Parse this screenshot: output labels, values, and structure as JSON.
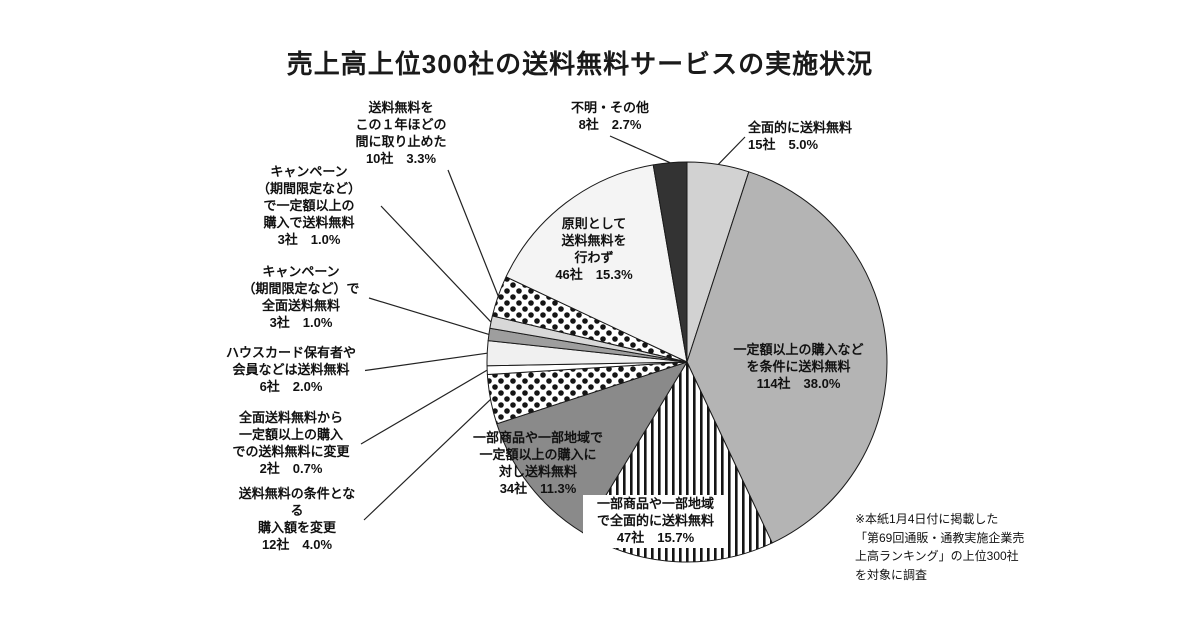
{
  "chart_data": {
    "type": "pie",
    "title": "売上高上位300社の送料無料サービスの実施状況",
    "footnote": "※本紙1月4日付に掲載した\n「第69回通販・通教実施企業売\n上高ランキング」の上位300社\nを対象に調査",
    "total_companies": 300,
    "value_unit": "社",
    "start_angle": "12-oclock",
    "direction": "clockwise",
    "legend_position": "none",
    "palette": "monochrome-patterns",
    "segments": [
      {
        "name": "全面的に送料無料",
        "companies": 15,
        "pct": 5.0,
        "fill": "#d2d2d2",
        "display": "全面的に送料無料\n15社　5.0%"
      },
      {
        "name": "一定額以上の購入などを条件に送料無料",
        "companies": 114,
        "pct": 38.0,
        "fill": "#b4b4b4",
        "display": "一定額以上の購入など\nを条件に送料無料\n114社　38.0%"
      },
      {
        "name": "一部商品や一部地域で全面的に送料無料",
        "companies": 47,
        "pct": 15.7,
        "fill": "stripes",
        "display": "一部商品や一部地域\nで全面的に送料無料\n47社　15.7%"
      },
      {
        "name": "一部商品や一部地域で一定額以上の購入に対し送料無料",
        "companies": 34,
        "pct": 11.3,
        "fill": "#8a8a8a",
        "display": "一部商品や一部地域で\n一定額以上の購入に\n対し送料無料\n34社　11.3%"
      },
      {
        "name": "送料無料の条件となる購入額を変更",
        "companies": 12,
        "pct": 4.0,
        "fill": "dots",
        "display": "送料無料の条件となる\n購入額を変更\n12社　4.0%"
      },
      {
        "name": "全面送料無料から一定額以上の購入での送料無料に変更",
        "companies": 2,
        "pct": 0.7,
        "fill": "#ffffff",
        "display": "全面送料無料から\n一定額以上の購入\nでの送料無料に変更\n2社　0.7%"
      },
      {
        "name": "ハウスカード保有者や会員などは送料無料",
        "companies": 6,
        "pct": 2.0,
        "fill": "#f0f0f0",
        "display": "ハウスカード保有者や\n会員などは送料無料\n6社　2.0%"
      },
      {
        "name": "キャンペーン（期間限定など）で全面送料無料",
        "companies": 3,
        "pct": 1.0,
        "fill": "#9e9e9e",
        "display": "キャンペーン\n（期間限定など）で\n全面送料無料\n3社　1.0%"
      },
      {
        "name": "キャンペーン（期間限定など）で一定額以上の購入で送料無料",
        "companies": 3,
        "pct": 1.0,
        "fill": "#d8d8d8",
        "display": "キャンペーン\n（期間限定など）\nで一定額以上の\n購入で送料無料\n3社　1.0%"
      },
      {
        "name": "送料無料をこの1年ほどの間に取り止めた",
        "companies": 10,
        "pct": 3.3,
        "fill": "dots",
        "display": "送料無料を\nこの１年ほどの\n間に取り止めた\n10社　3.3%"
      },
      {
        "name": "原則として送料無料を行わず",
        "companies": 46,
        "pct": 15.3,
        "fill": "#f4f4f4",
        "display": "原則として\n送料無料を\n行わず\n46社　15.3%"
      },
      {
        "name": "不明・その他",
        "companies": 8,
        "pct": 2.7,
        "fill": "#333333",
        "display": "不明・その他\n8社　2.7%"
      }
    ]
  }
}
